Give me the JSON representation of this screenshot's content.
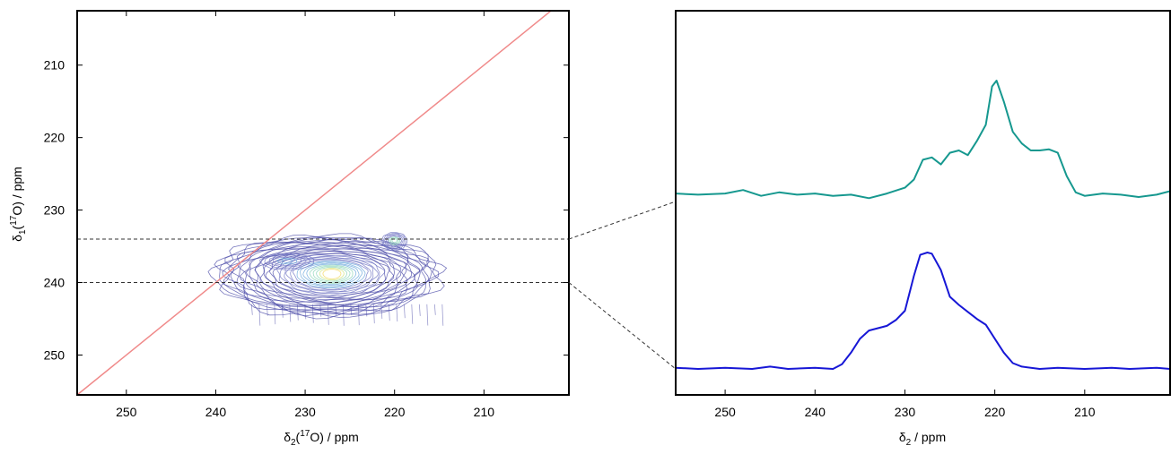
{
  "figure": {
    "left_plot": {
      "xlabel": {
        "prefix": "δ",
        "sub": "2",
        "mid": "(",
        "sup": "17",
        "rest": "O) / ppm"
      },
      "ylabel": {
        "prefix": "δ",
        "sub": "1",
        "mid": "(",
        "sup": "17",
        "rest": "O) / ppm"
      }
    },
    "right_plot": {
      "xlabel": {
        "prefix": "δ",
        "sub": "2",
        "rest": " / ppm"
      }
    }
  },
  "chart_data": [
    {
      "type": "contour",
      "x_ticks": [
        250,
        240,
        230,
        220,
        210
      ],
      "y_ticks": [
        210,
        220,
        230,
        240,
        250
      ],
      "xlim": [
        255.5,
        200.5
      ],
      "ylim": [
        202.5,
        255.5
      ],
      "diagonal": true,
      "diagonal_color": "#f08a8a",
      "slice_lines_y": [
        234,
        240
      ],
      "contour_colors": [
        "#4b4ba8",
        "#6a6ec0",
        "#5fa0d8",
        "#7ed0b0",
        "#c8e070",
        "#f2d24a"
      ],
      "peaks": [
        {
          "x": 226.5,
          "y": 239,
          "intensity": 1.0
        },
        {
          "x": 220,
          "y": 234.2,
          "intensity": 0.55
        },
        {
          "x": 232,
          "y": 237,
          "intensity": 0.45
        }
      ]
    },
    {
      "type": "line",
      "x_ticks": [
        250,
        240,
        230,
        220,
        210
      ],
      "xlim": [
        255.5,
        200.5
      ],
      "series": [
        {
          "color": "#16988f",
          "slice_at": 234,
          "points": [
            [
              255.5,
              0.03
            ],
            [
              253,
              0.02
            ],
            [
              250,
              0.03
            ],
            [
              248,
              0.06
            ],
            [
              246,
              0.01
            ],
            [
              244,
              0.04
            ],
            [
              242,
              0.02
            ],
            [
              240,
              0.03
            ],
            [
              238,
              0.01
            ],
            [
              236,
              0.02
            ],
            [
              234,
              -0.01
            ],
            [
              232,
              0.03
            ],
            [
              230,
              0.08
            ],
            [
              229,
              0.15
            ],
            [
              228,
              0.32
            ],
            [
              227,
              0.34
            ],
            [
              226,
              0.28
            ],
            [
              225,
              0.38
            ],
            [
              224,
              0.4
            ],
            [
              223,
              0.36
            ],
            [
              222,
              0.48
            ],
            [
              221,
              0.62
            ],
            [
              220.3,
              0.95
            ],
            [
              219.8,
              1.0
            ],
            [
              219,
              0.82
            ],
            [
              218,
              0.56
            ],
            [
              217,
              0.46
            ],
            [
              216,
              0.4
            ],
            [
              215,
              0.4
            ],
            [
              214,
              0.41
            ],
            [
              213,
              0.38
            ],
            [
              212,
              0.18
            ],
            [
              211,
              0.04
            ],
            [
              210,
              0.01
            ],
            [
              208,
              0.03
            ],
            [
              206,
              0.02
            ],
            [
              204,
              0.0
            ],
            [
              202,
              0.02
            ],
            [
              200.5,
              0.05
            ]
          ]
        },
        {
          "color": "#1717d6",
          "slice_at": 240,
          "points": [
            [
              255.5,
              0.01
            ],
            [
              253,
              0.0
            ],
            [
              250,
              0.01
            ],
            [
              247,
              0.0
            ],
            [
              245,
              0.02
            ],
            [
              243,
              0.0
            ],
            [
              240,
              0.01
            ],
            [
              238,
              0.0
            ],
            [
              237,
              0.04
            ],
            [
              236,
              0.14
            ],
            [
              235,
              0.26
            ],
            [
              234,
              0.33
            ],
            [
              233,
              0.35
            ],
            [
              232,
              0.37
            ],
            [
              231,
              0.42
            ],
            [
              230,
              0.5
            ],
            [
              229,
              0.8
            ],
            [
              228.3,
              0.98
            ],
            [
              227.5,
              1.0
            ],
            [
              227,
              0.99
            ],
            [
              226,
              0.85
            ],
            [
              225,
              0.62
            ],
            [
              224,
              0.55
            ],
            [
              223,
              0.49
            ],
            [
              222,
              0.43
            ],
            [
              221,
              0.38
            ],
            [
              220,
              0.26
            ],
            [
              219,
              0.14
            ],
            [
              218,
              0.05
            ],
            [
              217,
              0.02
            ],
            [
              215,
              0.0
            ],
            [
              213,
              0.01
            ],
            [
              210,
              0.0
            ],
            [
              207,
              0.01
            ],
            [
              205,
              0.0
            ],
            [
              202,
              0.01
            ],
            [
              200.5,
              0.0
            ]
          ]
        }
      ]
    }
  ]
}
